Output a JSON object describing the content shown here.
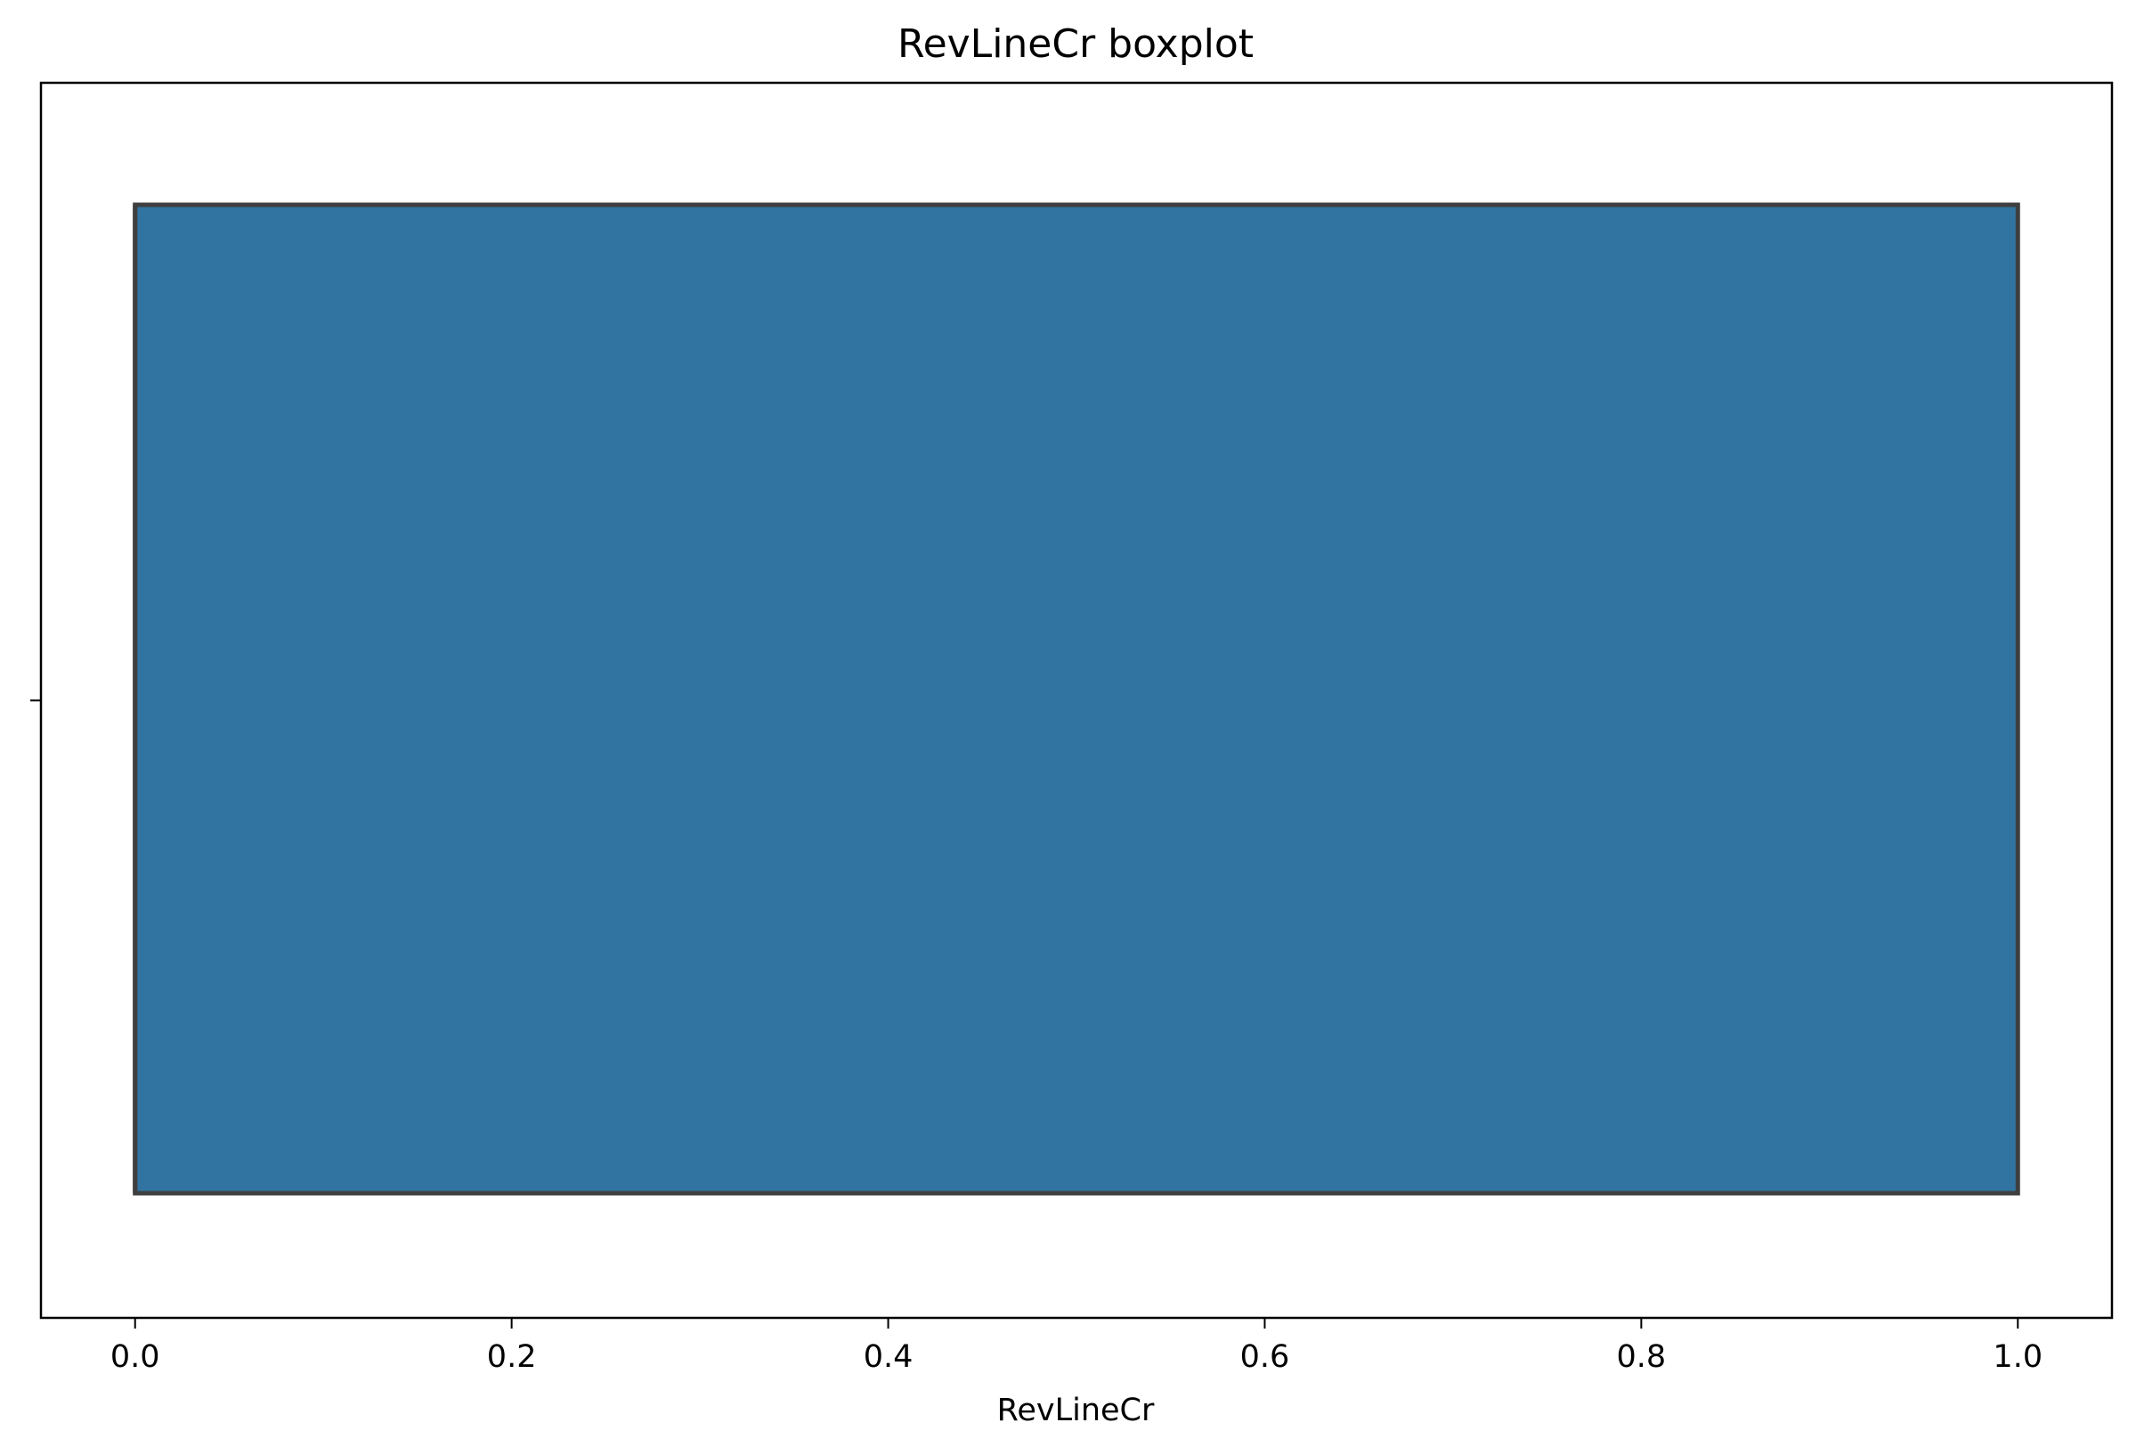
{
  "chart_data": {
    "type": "boxplot",
    "orientation": "horizontal",
    "title": "RevLineCr boxplot",
    "xlabel": "RevLineCr",
    "ylabel": "",
    "xlim": [
      -0.05,
      1.05
    ],
    "x_ticks": [
      0.0,
      0.2,
      0.4,
      0.6,
      0.8,
      1.0
    ],
    "x_tick_labels": [
      "0.0",
      "0.2",
      "0.4",
      "0.6",
      "0.8",
      "1.0"
    ],
    "grid": false,
    "box": {
      "min": 0.0,
      "q1": 0.0,
      "median": 0.0,
      "q3": 1.0,
      "max": 1.0
    },
    "colors": {
      "box_fill": "#3274a1",
      "box_edge": "#3f3f3f",
      "axes": "#000000"
    }
  }
}
